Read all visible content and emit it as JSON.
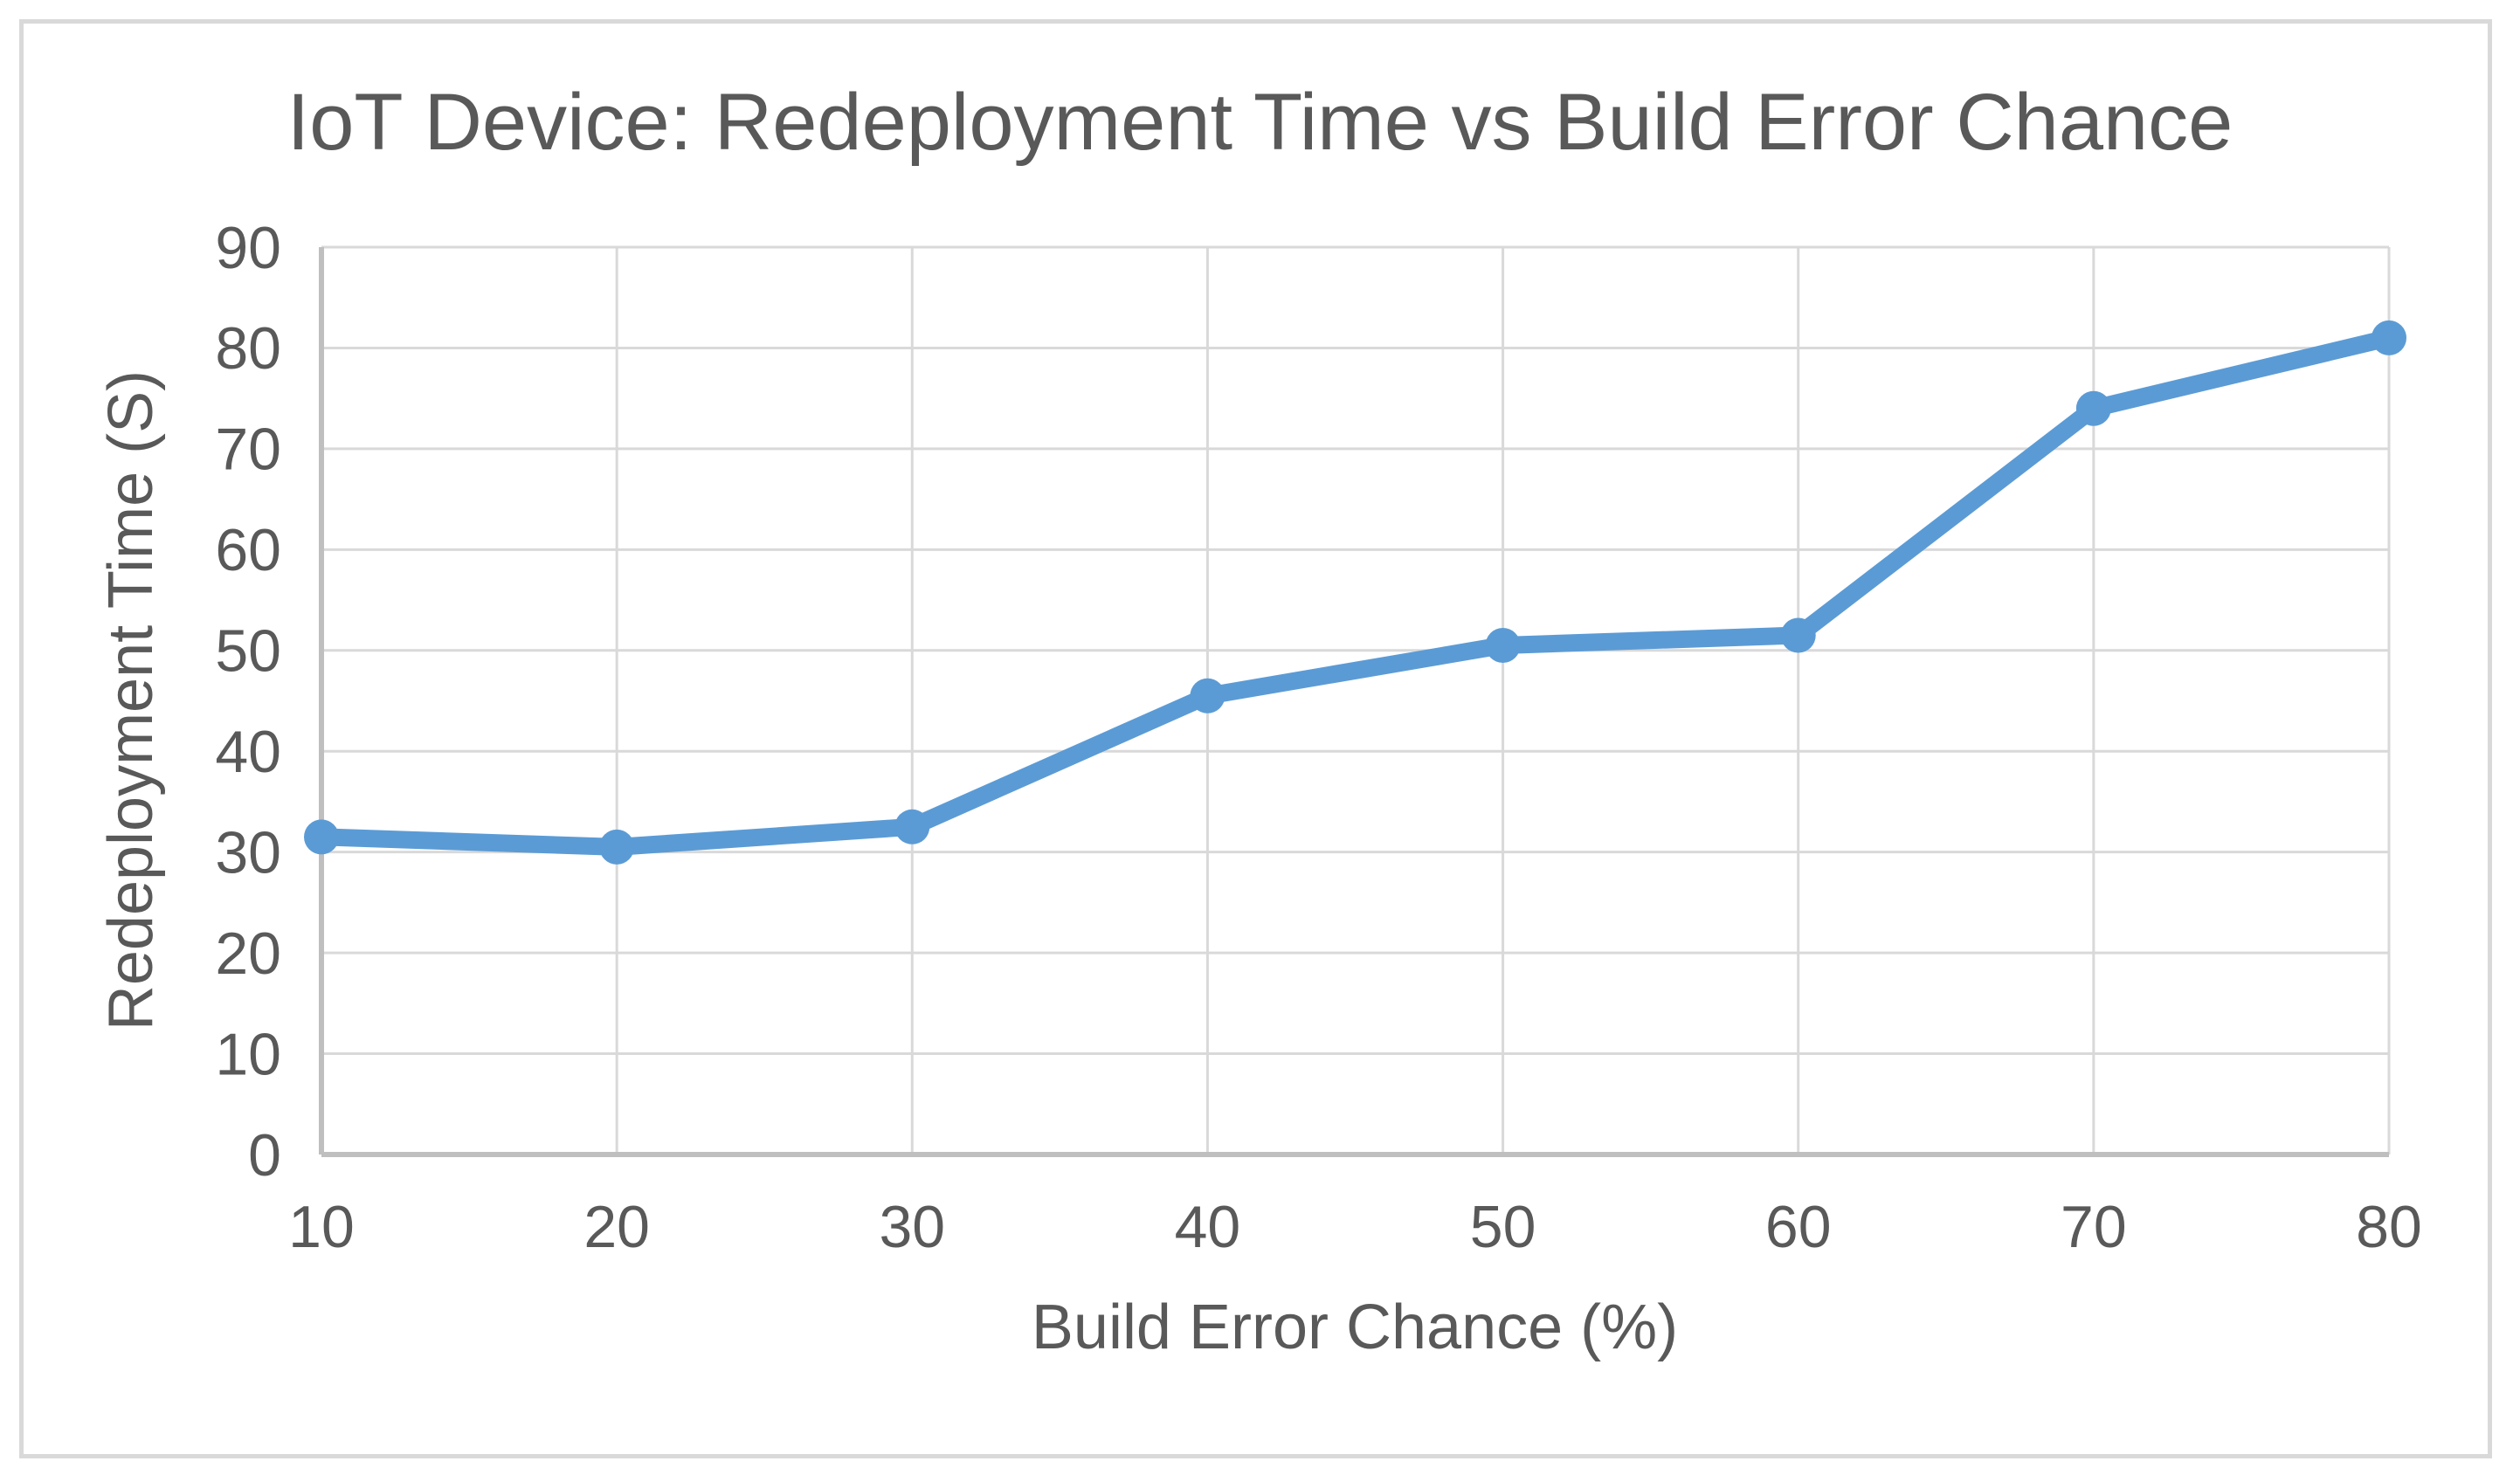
{
  "chart_data": {
    "type": "line",
    "title": "IoT Device: Redeployment Time vs Build Error Chance",
    "xlabel": "Build Error Chance (%)",
    "ylabel": "Redeployment Time (S)",
    "categories": [
      10,
      20,
      30,
      40,
      50,
      60,
      70,
      80
    ],
    "xticklabels": [
      "10",
      "20",
      "30",
      "40",
      "50",
      "60",
      "70",
      "80"
    ],
    "yticklabels": [
      "0",
      "10",
      "20",
      "30",
      "40",
      "50",
      "60",
      "70",
      "80",
      "90"
    ],
    "series": [
      {
        "name": "Redeployment Time",
        "values": [
          31.5,
          30.5,
          32.5,
          45.5,
          50.5,
          51.5,
          74,
          81
        ]
      }
    ],
    "ylim": [
      0,
      90
    ],
    "ytick_step": 10,
    "grid": true,
    "legend": "none",
    "marker": "circle",
    "colors": {
      "line": "#5B9BD5",
      "marker": "#5B9BD5",
      "text": "#595959",
      "gridline": "#D9D9D9",
      "axis_line": "#BFBFBF",
      "border": "#D9D9D9",
      "background": "#FFFFFF"
    }
  }
}
